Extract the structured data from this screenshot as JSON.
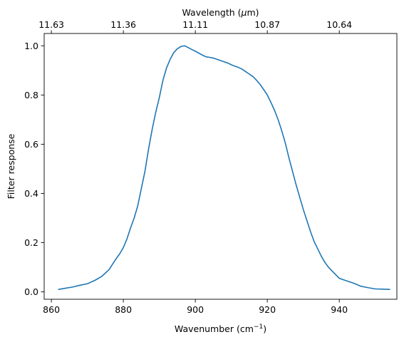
{
  "chart_data": {
    "type": "line",
    "xlabel": "Wavenumber (cm",
    "xlabel_sup": "−1",
    "xlabel_suffix": ")",
    "ylabel": "Filter response",
    "top_xlabel_prefix": "Wavelength (",
    "top_xlabel_mu": "μ",
    "top_xlabel_suffix": "m)",
    "xlim": [
      858.0,
      956.0
    ],
    "ylim": [
      -0.03,
      1.05
    ],
    "x_ticks": [
      860,
      880,
      900,
      920,
      940
    ],
    "x_tick_labels": [
      "860",
      "880",
      "900",
      "920",
      "940"
    ],
    "y_ticks": [
      0.0,
      0.2,
      0.4,
      0.6,
      0.8,
      1.0
    ],
    "y_tick_labels": [
      "0.0",
      "0.2",
      "0.4",
      "0.6",
      "0.8",
      "1.0"
    ],
    "top_ticks": [
      860,
      880,
      900,
      920,
      940
    ],
    "top_tick_labels": [
      "11.63",
      "11.36",
      "11.11",
      "10.87",
      "10.64"
    ],
    "line_color": "#1f77b4",
    "series": [
      {
        "x": [
          862,
          864,
          866,
          868,
          870,
          872,
          874,
          876,
          878,
          879,
          880,
          881,
          882,
          883,
          884,
          885,
          886,
          887,
          888,
          889,
          890,
          891,
          892,
          893,
          894,
          895,
          896,
          897,
          898,
          899,
          900,
          901,
          902,
          903,
          904,
          905,
          906,
          907,
          908,
          909,
          910,
          911,
          912,
          913,
          914,
          915,
          916,
          917,
          918,
          919,
          920,
          921,
          922,
          923,
          924,
          925,
          926,
          927,
          928,
          929,
          930,
          931,
          932,
          933,
          934,
          935,
          936,
          937,
          938,
          939,
          940,
          942,
          944,
          946,
          948,
          950,
          952,
          954
        ],
        "y": [
          0.01,
          0.015,
          0.02,
          0.027,
          0.033,
          0.046,
          0.063,
          0.09,
          0.135,
          0.155,
          0.18,
          0.215,
          0.26,
          0.3,
          0.35,
          0.42,
          0.49,
          0.58,
          0.66,
          0.73,
          0.79,
          0.86,
          0.91,
          0.945,
          0.972,
          0.988,
          0.997,
          1.0,
          0.993,
          0.985,
          0.978,
          0.97,
          0.962,
          0.955,
          0.953,
          0.95,
          0.945,
          0.94,
          0.935,
          0.93,
          0.923,
          0.917,
          0.912,
          0.905,
          0.895,
          0.885,
          0.875,
          0.86,
          0.843,
          0.822,
          0.8,
          0.77,
          0.738,
          0.7,
          0.655,
          0.605,
          0.545,
          0.49,
          0.435,
          0.385,
          0.335,
          0.29,
          0.245,
          0.205,
          0.175,
          0.145,
          0.12,
          0.1,
          0.085,
          0.07,
          0.055,
          0.045,
          0.035,
          0.023,
          0.017,
          0.012,
          0.011,
          0.01
        ]
      }
    ]
  }
}
